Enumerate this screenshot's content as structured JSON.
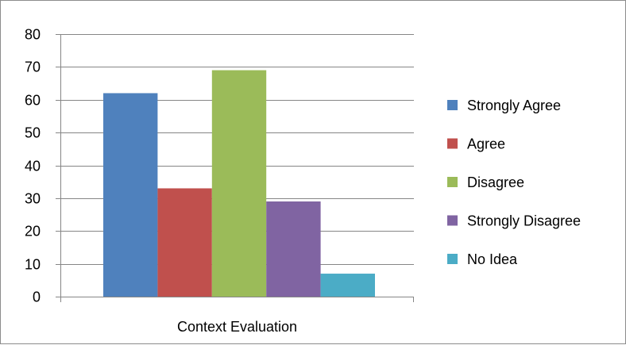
{
  "chart_data": {
    "type": "bar",
    "categories": [
      "Context Evaluation"
    ],
    "series": [
      {
        "name": "Strongly Agree",
        "values": [
          62
        ],
        "color": "#4F81BD"
      },
      {
        "name": "Agree",
        "values": [
          33
        ],
        "color": "#C0504D"
      },
      {
        "name": "Disagree",
        "values": [
          69
        ],
        "color": "#9BBB59"
      },
      {
        "name": "Strongly Disagree",
        "values": [
          29
        ],
        "color": "#8064A2"
      },
      {
        "name": "No Idea",
        "values": [
          7
        ],
        "color": "#4BACC6"
      }
    ],
    "ylim": [
      0,
      80
    ],
    "yticks": [
      0,
      10,
      20,
      30,
      40,
      50,
      60,
      70,
      80
    ],
    "grid": true,
    "legend_position": "right",
    "title": "",
    "xlabel": "",
    "ylabel": ""
  }
}
